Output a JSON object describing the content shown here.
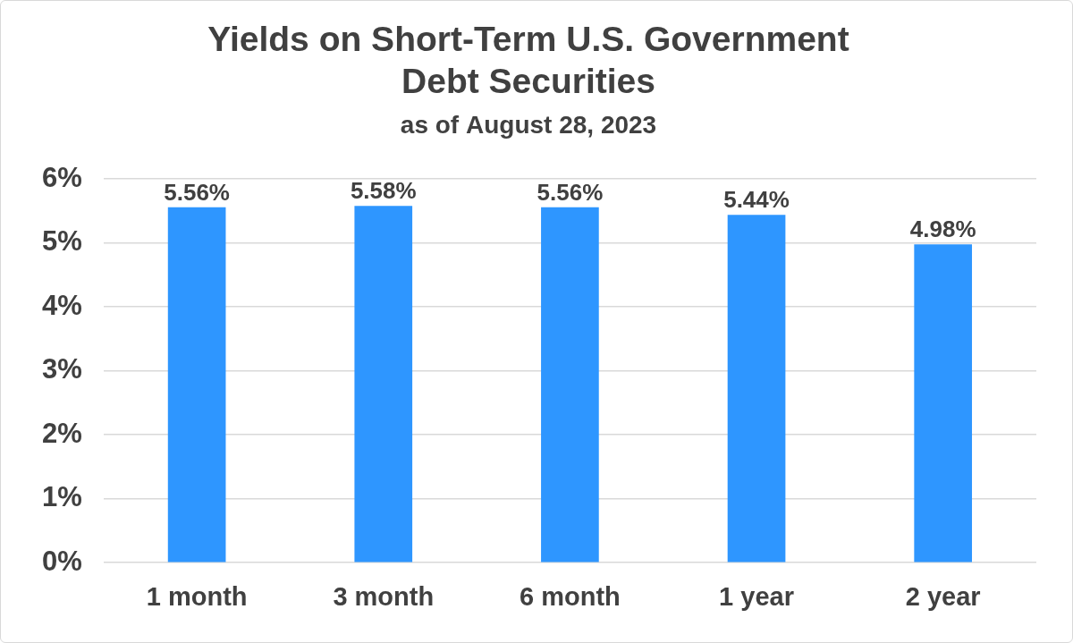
{
  "chart_data": {
    "type": "bar",
    "title": [
      "Yields on Short-Term U.S. Government",
      "Debt Securities"
    ],
    "subtitle": "as of August 28, 2023",
    "categories": [
      "1 month",
      "3 month",
      "6 month",
      "1 year",
      "2 year"
    ],
    "values": [
      5.56,
      5.58,
      5.56,
      5.44,
      4.98
    ],
    "value_labels": [
      "5.56%",
      "5.58%",
      "5.56%",
      "5.44%",
      "4.98%"
    ],
    "data_labels": true,
    "color": "#2e96ff",
    "ylim": [
      0,
      6
    ],
    "yticks": [
      {
        "value": 0,
        "label": "0%"
      },
      {
        "value": 1,
        "label": "1%"
      },
      {
        "value": 2,
        "label": "2%"
      },
      {
        "value": 3,
        "label": "3%"
      },
      {
        "value": 4,
        "label": "4%"
      },
      {
        "value": 5,
        "label": "5%"
      },
      {
        "value": 6,
        "label": "6%"
      }
    ],
    "grid": true
  }
}
